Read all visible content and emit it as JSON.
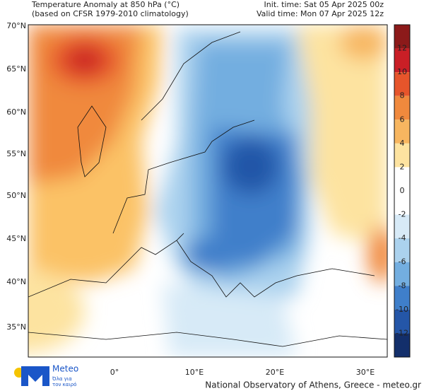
{
  "header": {
    "title": "Temperature Anomaly at 850 hPa (°C)",
    "subtitle": "(based on CFSR 1979-2010 climatology)",
    "init_time": "Init. time: Sat 05 Apr 2025 00z",
    "valid_time": "Valid time: Mon 07 Apr 2025 12z"
  },
  "map": {
    "lat_labels": [
      "70°N",
      "65°N",
      "60°N",
      "55°N",
      "50°N",
      "45°N",
      "40°N",
      "35°N"
    ],
    "lon_labels": [
      "0°",
      "10°E",
      "20°E",
      "30°E"
    ]
  },
  "colorbar": {
    "labels": [
      12,
      10,
      8,
      6,
      4,
      2,
      0,
      -2,
      -4,
      -6,
      -8,
      -10,
      -12
    ]
  },
  "logo": {
    "name": "Meteo",
    "tagline_1": "Όλα για",
    "tagline_2": "τον καιρό"
  },
  "footer": {
    "credit": "National Observatory of Athens, Greece - meteo.gr"
  }
}
